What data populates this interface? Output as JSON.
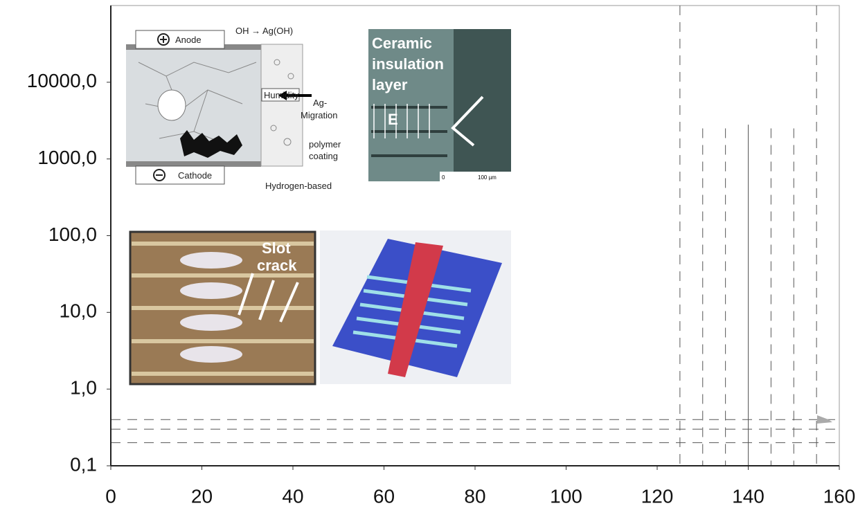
{
  "chart_data": {
    "type": "line",
    "log_y": true,
    "xlim": [
      0,
      160
    ],
    "xticks": [
      0,
      20,
      40,
      60,
      80,
      100,
      120,
      140,
      160
    ],
    "ylim": [
      0.1,
      100000
    ],
    "yticks": [
      {
        "value": 0.1,
        "label": "0,1"
      },
      {
        "value": 1,
        "label": "1,0"
      },
      {
        "value": 10,
        "label": "10,0"
      },
      {
        "value": 100,
        "label": "100,0"
      },
      {
        "value": 1000,
        "label": "1000,0"
      },
      {
        "value": 10000,
        "label": "10000,0"
      }
    ],
    "vlines": [
      {
        "x": 125,
        "top": 100000,
        "dashed": true
      },
      {
        "x": 130,
        "top": 2500,
        "dashed": true
      },
      {
        "x": 135,
        "top": 2500,
        "dashed": true
      },
      {
        "x": 140,
        "top": 2800,
        "dashed": false
      },
      {
        "x": 145,
        "top": 2500,
        "dashed": true
      },
      {
        "x": 150,
        "top": 2500,
        "dashed": true
      },
      {
        "x": 155,
        "top": 100000,
        "dashed": true
      }
    ],
    "hlines": [
      {
        "y": 0.4,
        "dashed": true
      },
      {
        "y": 0.3,
        "dashed": true
      },
      {
        "y": 0.2,
        "dashed": true
      }
    ],
    "color": "#555555"
  },
  "insets": [
    {
      "labels": {
        "anode": "Anode",
        "reaction": "OH → Ag(OH)",
        "humidity": "Humidity",
        "migration": [
          "Ag-",
          "Migration"
        ],
        "coating": [
          "polymer",
          "coating"
        ],
        "cathode": "Cathode",
        "hydrogen": "Hydrogen-based"
      }
    },
    {
      "labels": {
        "title": [
          "Ceramic",
          "insulation",
          "layer"
        ],
        "field": "E",
        "scale_start": "0",
        "scale_end": "100 µm"
      }
    },
    {
      "labels": {
        "title": [
          "Slot",
          "crack"
        ]
      }
    }
  ]
}
